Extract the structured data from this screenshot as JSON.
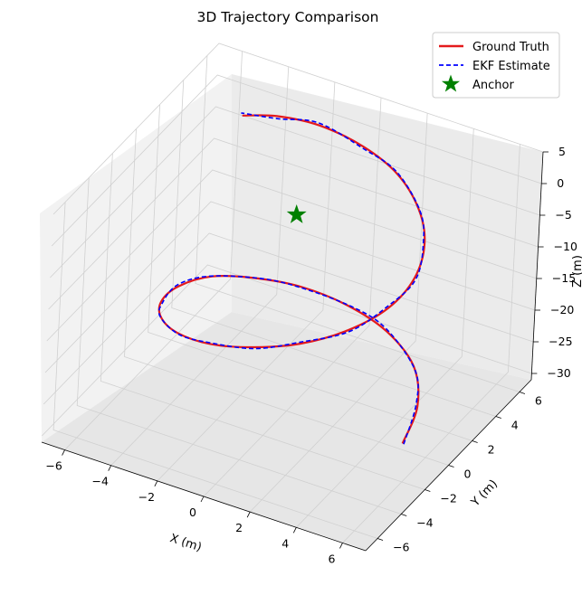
{
  "chart_data": {
    "type": "line3d",
    "title": "3D Trajectory Comparison",
    "xlabel": "X (m)",
    "ylabel": "Y (m)",
    "zlabel": "Z (m)",
    "xlim": [
      -7,
      7
    ],
    "ylim": [
      -7,
      7
    ],
    "zlim": [
      -31,
      5
    ],
    "xticks": [
      -6,
      -4,
      -2,
      0,
      2,
      4,
      6
    ],
    "yticks": [
      -6,
      -4,
      -2,
      0,
      2,
      4,
      6
    ],
    "zticks": [
      5,
      0,
      -5,
      -10,
      -15,
      -20,
      -25,
      -30
    ],
    "legend_position": "top-right",
    "colors": {
      "ground_truth": "#e41a1c",
      "ekf": "#0000ff",
      "anchor": "#008000",
      "pane": "#f2f2f2",
      "grid": "#d0d0d0"
    },
    "series": [
      {
        "name": "Ground Truth",
        "style": "solid",
        "points": [
          [
            5.0,
            0.0,
            -30.0
          ],
          [
            4.6,
            2.0,
            -28.5
          ],
          [
            3.5,
            3.8,
            -27.0
          ],
          [
            1.8,
            4.8,
            -25.5
          ],
          [
            0.0,
            5.0,
            -24.0
          ],
          [
            -1.8,
            4.6,
            -22.5
          ],
          [
            -3.3,
            3.6,
            -21.0
          ],
          [
            -4.5,
            2.2,
            -19.5
          ],
          [
            -5.0,
            0.3,
            -18.0
          ],
          [
            -4.8,
            -1.6,
            -16.5
          ],
          [
            -4.0,
            -3.2,
            -15.0
          ],
          [
            -2.7,
            -4.4,
            -13.5
          ],
          [
            -1.0,
            -5.0,
            -12.0
          ],
          [
            0.8,
            -4.9,
            -10.5
          ],
          [
            2.5,
            -4.3,
            -9.0
          ],
          [
            3.9,
            -3.1,
            -7.5
          ],
          [
            4.8,
            -1.5,
            -6.0
          ],
          [
            5.0,
            0.3,
            -4.5
          ],
          [
            4.5,
            2.1,
            -3.0
          ],
          [
            3.5,
            3.5,
            -1.5
          ],
          [
            2.0,
            4.6,
            0.0
          ],
          [
            0.3,
            5.0,
            1.5
          ],
          [
            -1.5,
            4.8,
            3.0
          ],
          [
            -3.0,
            4.1,
            4.0
          ],
          [
            -4.0,
            3.1,
            4.8
          ]
        ]
      },
      {
        "name": "EKF Estimate",
        "style": "dashed",
        "points": [
          [
            5.1,
            -0.1,
            -29.8
          ],
          [
            4.5,
            2.1,
            -28.3
          ],
          [
            3.6,
            3.7,
            -27.2
          ],
          [
            1.7,
            4.9,
            -25.3
          ],
          [
            0.1,
            5.1,
            -24.2
          ],
          [
            -1.9,
            4.5,
            -22.4
          ],
          [
            -3.2,
            3.7,
            -21.1
          ],
          [
            -4.6,
            2.1,
            -19.4
          ],
          [
            -5.1,
            0.4,
            -18.1
          ],
          [
            -4.7,
            -1.7,
            -16.4
          ],
          [
            -4.1,
            -3.1,
            -15.1
          ],
          [
            -2.6,
            -4.5,
            -13.4
          ],
          [
            -1.1,
            -4.9,
            -12.1
          ],
          [
            0.9,
            -5.0,
            -10.4
          ],
          [
            2.4,
            -4.2,
            -9.1
          ],
          [
            4.0,
            -3.2,
            -7.4
          ],
          [
            4.7,
            -1.4,
            -6.1
          ],
          [
            5.1,
            0.2,
            -4.4
          ],
          [
            4.4,
            2.2,
            -3.1
          ],
          [
            3.6,
            3.4,
            -1.4
          ],
          [
            1.9,
            4.7,
            0.1
          ],
          [
            0.4,
            4.9,
            1.4
          ],
          [
            -1.6,
            4.9,
            3.1
          ],
          [
            -2.9,
            4.0,
            3.9
          ],
          [
            -4.1,
            3.2,
            4.9
          ]
        ]
      }
    ],
    "anchor": {
      "name": "Anchor",
      "x": 0.0,
      "y": 0.0,
      "z": 0.0
    }
  }
}
